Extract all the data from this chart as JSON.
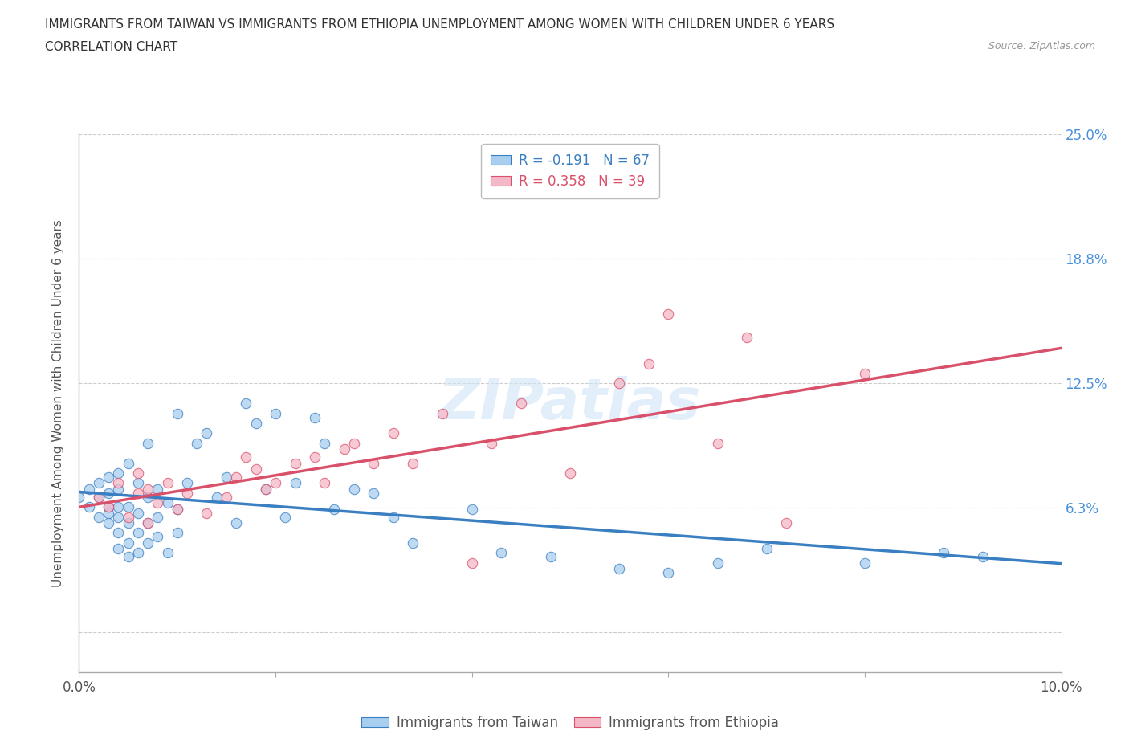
{
  "title_line1": "IMMIGRANTS FROM TAIWAN VS IMMIGRANTS FROM ETHIOPIA UNEMPLOYMENT AMONG WOMEN WITH CHILDREN UNDER 6 YEARS",
  "title_line2": "CORRELATION CHART",
  "source_text": "Source: ZipAtlas.com",
  "ylabel": "Unemployment Among Women with Children Under 6 years",
  "xlim": [
    0.0,
    0.1
  ],
  "ylim": [
    -0.02,
    0.25
  ],
  "yticks": [
    0.0,
    0.0625,
    0.125,
    0.1875,
    0.25
  ],
  "ytick_labels": [
    "",
    "6.3%",
    "12.5%",
    "18.8%",
    "25.0%"
  ],
  "xticks": [
    0.0,
    0.02,
    0.04,
    0.06,
    0.08,
    0.1
  ],
  "xtick_labels": [
    "0.0%",
    "",
    "",
    "",
    "",
    "10.0%"
  ],
  "taiwan_R": -0.191,
  "taiwan_N": 67,
  "ethiopia_R": 0.358,
  "ethiopia_N": 39,
  "taiwan_color": "#a8cef0",
  "ethiopia_color": "#f5b8c8",
  "taiwan_line_color": "#3a7fc1",
  "ethiopia_line_color": "#d9506a",
  "watermark": "ZIPatlas",
  "taiwan_x": [
    0.0,
    0.001,
    0.001,
    0.002,
    0.002,
    0.002,
    0.003,
    0.003,
    0.003,
    0.003,
    0.003,
    0.004,
    0.004,
    0.004,
    0.004,
    0.004,
    0.004,
    0.005,
    0.005,
    0.005,
    0.005,
    0.005,
    0.006,
    0.006,
    0.006,
    0.006,
    0.007,
    0.007,
    0.007,
    0.007,
    0.008,
    0.008,
    0.008,
    0.009,
    0.009,
    0.01,
    0.01,
    0.01,
    0.011,
    0.012,
    0.013,
    0.014,
    0.015,
    0.016,
    0.017,
    0.018,
    0.019,
    0.02,
    0.021,
    0.022,
    0.024,
    0.025,
    0.026,
    0.028,
    0.03,
    0.032,
    0.034,
    0.04,
    0.043,
    0.048,
    0.055,
    0.06,
    0.065,
    0.07,
    0.08,
    0.088,
    0.092
  ],
  "taiwan_y": [
    0.068,
    0.063,
    0.072,
    0.058,
    0.068,
    0.075,
    0.055,
    0.06,
    0.063,
    0.07,
    0.078,
    0.042,
    0.05,
    0.058,
    0.063,
    0.072,
    0.08,
    0.038,
    0.045,
    0.055,
    0.063,
    0.085,
    0.04,
    0.05,
    0.06,
    0.075,
    0.045,
    0.055,
    0.068,
    0.095,
    0.048,
    0.058,
    0.072,
    0.04,
    0.065,
    0.05,
    0.062,
    0.11,
    0.075,
    0.095,
    0.1,
    0.068,
    0.078,
    0.055,
    0.115,
    0.105,
    0.072,
    0.11,
    0.058,
    0.075,
    0.108,
    0.095,
    0.062,
    0.072,
    0.07,
    0.058,
    0.045,
    0.062,
    0.04,
    0.038,
    0.032,
    0.03,
    0.035,
    0.042,
    0.035,
    0.04,
    0.038
  ],
  "ethiopia_x": [
    0.002,
    0.003,
    0.004,
    0.005,
    0.006,
    0.006,
    0.007,
    0.007,
    0.008,
    0.009,
    0.01,
    0.011,
    0.013,
    0.015,
    0.016,
    0.017,
    0.018,
    0.019,
    0.02,
    0.022,
    0.024,
    0.025,
    0.027,
    0.028,
    0.03,
    0.032,
    0.034,
    0.037,
    0.04,
    0.042,
    0.045,
    0.05,
    0.055,
    0.058,
    0.06,
    0.065,
    0.068,
    0.072,
    0.08
  ],
  "ethiopia_y": [
    0.068,
    0.063,
    0.075,
    0.058,
    0.07,
    0.08,
    0.055,
    0.072,
    0.065,
    0.075,
    0.062,
    0.07,
    0.06,
    0.068,
    0.078,
    0.088,
    0.082,
    0.072,
    0.075,
    0.085,
    0.088,
    0.075,
    0.092,
    0.095,
    0.085,
    0.1,
    0.085,
    0.11,
    0.035,
    0.095,
    0.115,
    0.08,
    0.125,
    0.135,
    0.16,
    0.095,
    0.148,
    0.055,
    0.13
  ]
}
